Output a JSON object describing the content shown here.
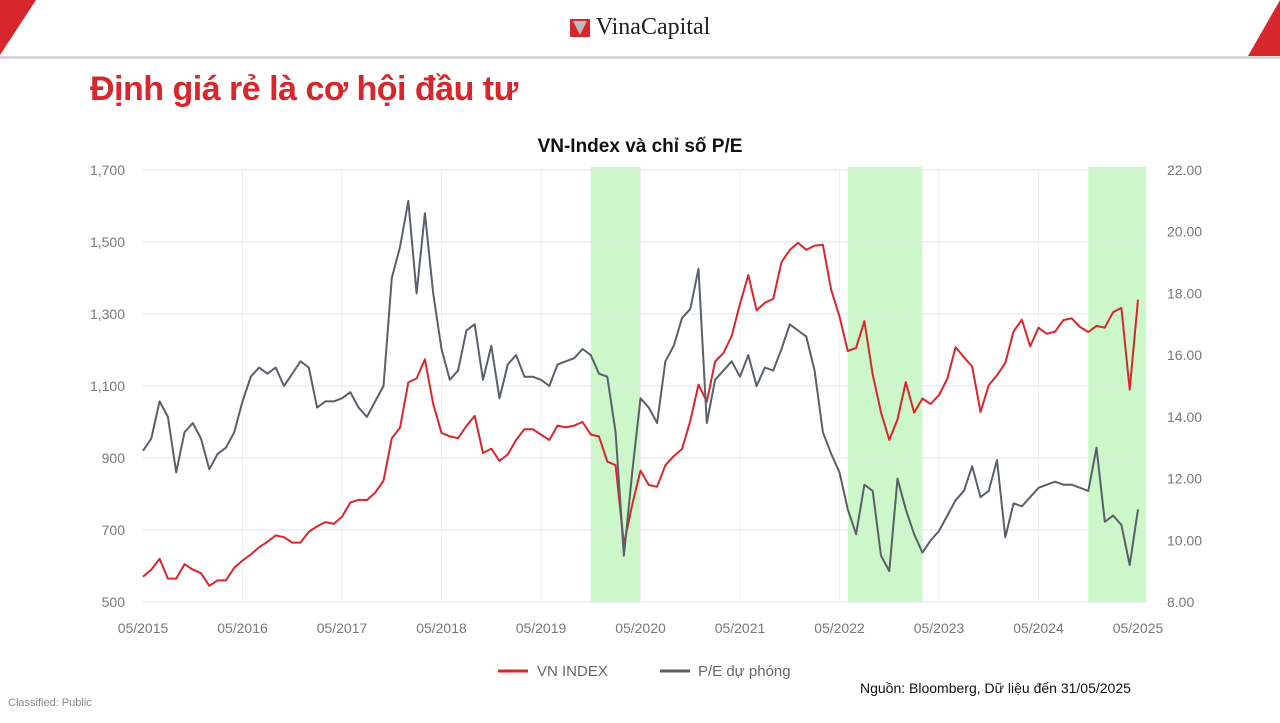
{
  "header": {
    "logo_text": "VinaCapital",
    "brand_color": "#d7262c"
  },
  "slide_title": "Định giá rẻ là cơ hội đầu tư",
  "footer": {
    "classified": "Classified: Public",
    "source": "Nguồn: Bloomberg, Dữ liệu đến 31/05/2025"
  },
  "chart_data": {
    "type": "line",
    "title": "VN-Index và chỉ số P/E",
    "x_tick_labels": [
      "05/2015",
      "05/2016",
      "05/2017",
      "05/2018",
      "05/2019",
      "05/2020",
      "05/2021",
      "05/2022",
      "05/2023",
      "05/2024",
      "05/2025"
    ],
    "y_left": {
      "range": [
        500,
        1700
      ],
      "ticks": [
        "500",
        "700",
        "900",
        "1,100",
        "1,300",
        "1,500",
        "1,700"
      ]
    },
    "y_right": {
      "range": [
        8,
        22
      ],
      "ticks": [
        "8.00",
        "10.00",
        "12.00",
        "14.00",
        "16.00",
        "18.00",
        "20.00",
        "22.00"
      ]
    },
    "grid": true,
    "legend_placement": "bottom",
    "highlight_color": "#ccf7c8",
    "highlight_periods": [
      [
        "2019-11",
        "2020-05"
      ],
      [
        "2022-06",
        "2023-03"
      ],
      [
        "2024-11",
        "2025-06"
      ]
    ],
    "start_month": "2015-05",
    "series": [
      {
        "name": "VN INDEX",
        "axis": "left",
        "color": "#d7262c",
        "values": [
          570,
          590,
          620,
          565,
          565,
          605,
          590,
          580,
          545,
          560,
          560,
          595,
          615,
          632,
          652,
          667,
          685,
          680,
          665,
          665,
          695,
          710,
          722,
          717,
          737,
          776,
          784,
          783,
          804,
          837,
          955,
          984,
          1110,
          1121,
          1174,
          1050,
          970,
          960,
          955,
          989,
          1017,
          914,
          926,
          892,
          910,
          950,
          980,
          980,
          965,
          950,
          990,
          985,
          990,
          1000,
          965,
          960,
          890,
          880,
          660,
          770,
          865,
          825,
          820,
          880,
          905,
          925,
          1003,
          1104,
          1056,
          1168,
          1191,
          1239,
          1328,
          1408,
          1310,
          1331,
          1342,
          1444,
          1478,
          1498,
          1478,
          1490,
          1492,
          1367,
          1293,
          1197,
          1206,
          1280,
          1132,
          1027,
          950,
          1007,
          1111,
          1026,
          1065,
          1050,
          1075,
          1120,
          1208,
          1180,
          1154,
          1028,
          1102,
          1130,
          1164,
          1252,
          1284,
          1210,
          1262,
          1245,
          1251,
          1283,
          1288,
          1264,
          1250,
          1267,
          1262,
          1305,
          1317,
          1090,
          1340
        ]
      },
      {
        "name": "P/E dự phóng",
        "axis": "right",
        "color": "#5a6069",
        "values": [
          12.9,
          13.3,
          14.5,
          14.0,
          12.2,
          13.5,
          13.8,
          13.3,
          12.3,
          12.8,
          13.0,
          13.5,
          14.5,
          15.3,
          15.6,
          15.4,
          15.6,
          15.0,
          15.4,
          15.8,
          15.6,
          14.3,
          14.5,
          14.5,
          14.6,
          14.8,
          14.3,
          14.0,
          14.5,
          15.0,
          18.5,
          19.5,
          21.0,
          18.0,
          20.6,
          18.0,
          16.2,
          15.2,
          15.5,
          16.8,
          17.0,
          15.2,
          16.3,
          14.6,
          15.7,
          16.0,
          15.3,
          15.3,
          15.2,
          15.0,
          15.7,
          15.8,
          15.9,
          16.2,
          16.0,
          15.4,
          15.3,
          13.5,
          9.5,
          12.2,
          14.6,
          14.3,
          13.8,
          15.8,
          16.3,
          17.2,
          17.5,
          18.8,
          13.8,
          15.2,
          15.5,
          15.8,
          15.3,
          16.0,
          15.0,
          15.6,
          15.5,
          16.2,
          17.0,
          16.8,
          16.6,
          15.5,
          13.5,
          12.8,
          12.2,
          11.0,
          10.2,
          11.8,
          11.6,
          9.5,
          9.0,
          12.0,
          11.0,
          10.2,
          9.6,
          10.0,
          10.3,
          10.8,
          11.3,
          11.6,
          12.4,
          11.4,
          11.6,
          12.6,
          10.1,
          11.2,
          11.1,
          11.4,
          11.7,
          11.8,
          11.9,
          11.8,
          11.8,
          11.7,
          11.6,
          13.0,
          10.6,
          10.8,
          10.5,
          9.2,
          11.0
        ]
      }
    ]
  }
}
